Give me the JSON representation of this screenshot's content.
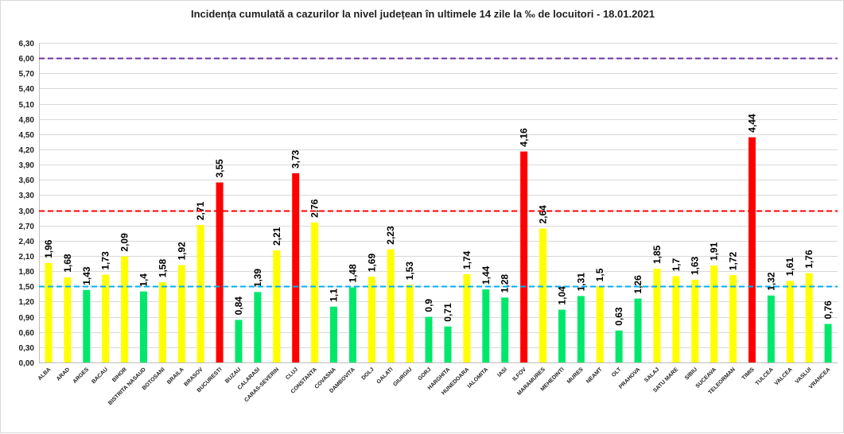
{
  "chart_data": {
    "type": "bar",
    "title": "Incidența cumulată a cazurilor la nivel județean în ultimele 14 zile la ‰ de locuitori - 18.01.2021",
    "xlabel": "",
    "ylabel": "",
    "ylim": [
      0,
      6.3
    ],
    "yticks": [
      "0,00",
      "0,30",
      "0,60",
      "0,90",
      "1,20",
      "1,50",
      "1,80",
      "2,10",
      "2,40",
      "2,70",
      "3,00",
      "3,30",
      "3,60",
      "3,90",
      "4,20",
      "4,50",
      "4,80",
      "5,10",
      "5,40",
      "5,70",
      "6,00",
      "6,30"
    ],
    "categories": [
      "ALBA",
      "ARAD",
      "ARGES",
      "BACAU",
      "BIHOR",
      "BISTRITA NASAUD",
      "BOTOSANI",
      "BRAILA",
      "BRASOV",
      "BUCURESTI",
      "BUZAU",
      "CALARASI",
      "CARAS-SEVERIN",
      "CLUJ",
      "CONSTANTA",
      "COVASNA",
      "DAMBOVITA",
      "DOLJ",
      "GALATI",
      "GIURGIU",
      "GORJ",
      "HARGHITA",
      "HUNEDOARA",
      "IALOMITA",
      "IASI",
      "ILFOV",
      "MARAMURES",
      "MEHEDINTI",
      "MURES",
      "NEAMT",
      "OLT",
      "PRAHOVA",
      "SALAJ",
      "SATU MARE",
      "SIBIU",
      "SUCEAVA",
      "TELEORMAN",
      "TIMIS",
      "TULCEA",
      "VALCEA",
      "VASLUI",
      "VRANCEA"
    ],
    "values": [
      1.96,
      1.68,
      1.43,
      1.73,
      2.09,
      1.4,
      1.58,
      1.92,
      2.71,
      3.55,
      0.84,
      1.39,
      2.21,
      3.73,
      2.76,
      1.1,
      1.48,
      1.69,
      2.23,
      1.53,
      0.9,
      0.71,
      1.74,
      1.44,
      1.28,
      4.16,
      2.64,
      1.04,
      1.31,
      1.5,
      0.63,
      1.26,
      1.85,
      1.7,
      1.63,
      1.91,
      1.72,
      4.44,
      1.32,
      1.61,
      1.76,
      0.76
    ],
    "labels": [
      "1,96",
      "1,68",
      "1,43",
      "1,73",
      "2,09",
      "1,4",
      "1,58",
      "1,92",
      "2,71",
      "3,55",
      "0,84",
      "1,39",
      "2,21",
      "3,73",
      "2,76",
      "1,1",
      "1,48",
      "1,69",
      "2,23",
      "1,53",
      "0,9",
      "0,71",
      "1,74",
      "1,44",
      "1,28",
      "4,16",
      "2,64",
      "1,04",
      "1,31",
      "1,5",
      "0,63",
      "1,26",
      "1,85",
      "1,7",
      "1,63",
      "1,91",
      "1,72",
      "4,44",
      "1,32",
      "1,61",
      "1,76",
      "0,76"
    ],
    "thresholds": [
      {
        "name": "green-threshold",
        "value": 1.5,
        "color": "#00b0f0"
      },
      {
        "name": "red-threshold",
        "value": 3.0,
        "color": "#ff0000"
      },
      {
        "name": "purple-threshold",
        "value": 6.0,
        "color": "#7030a0"
      }
    ],
    "colors": {
      "green": "#00e86c",
      "yellow": "#ffff00",
      "red": "#ff0000",
      "grid": "#d9d9d9",
      "axis": "#bfbfbf"
    },
    "color_rule": "green if value < 1.5, yellow if 1.5 <= value < 3.0, red if value >= 3.0",
    "grid": true,
    "legend": "none"
  }
}
